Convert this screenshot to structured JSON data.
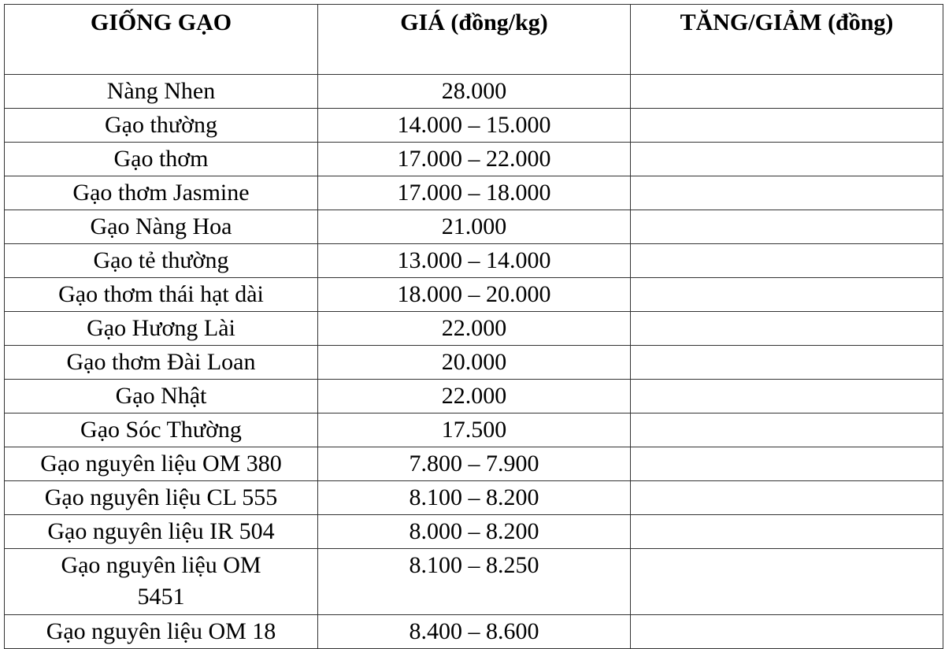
{
  "headers": [
    "GIỐNG GẠO",
    "GIÁ (đồng/kg)",
    "TĂNG/GIẢM (đồng)"
  ],
  "rows": [
    {
      "variety": "Nàng Nhen",
      "price": "28.000",
      "change": ""
    },
    {
      "variety": "Gạo thường",
      "price": "14.000 – 15.000",
      "change": ""
    },
    {
      "variety": "Gạo thơm",
      "price": "17.000 – 22.000",
      "change": ""
    },
    {
      "variety": "Gạo thơm Jasmine",
      "price": "17.000 – 18.000",
      "change": ""
    },
    {
      "variety": "Gạo Nàng Hoa",
      "price": "21.000",
      "change": ""
    },
    {
      "variety": "Gạo tẻ thường",
      "price": "13.000 – 14.000",
      "change": ""
    },
    {
      "variety": "Gạo thơm thái hạt dài",
      "price": "18.000 – 20.000",
      "change": ""
    },
    {
      "variety": "Gạo Hương Lài",
      "price": "22.000",
      "change": ""
    },
    {
      "variety": "Gạo thơm Đài Loan",
      "price": "20.000",
      "change": ""
    },
    {
      "variety": "Gạo Nhật",
      "price": "22.000",
      "change": ""
    },
    {
      "variety": "Gạo Sóc Thường",
      "price": "17.500",
      "change": ""
    },
    {
      "variety": "Gạo nguyên liệu OM 380",
      "price": "7.800 – 7.900",
      "change": ""
    },
    {
      "variety": "Gạo nguyên liệu CL 555",
      "price": "8.100 – 8.200",
      "change": ""
    },
    {
      "variety": "Gạo nguyên liệu IR 504",
      "price": "8.000 – 8.200",
      "change": ""
    },
    {
      "variety": "Gạo nguyên liệu OM 5451",
      "price": "8.100 – 8.250",
      "change": ""
    },
    {
      "variety": "Gạo nguyên liệu OM 18",
      "price": "8.400 – 8.600",
      "change": ""
    }
  ]
}
